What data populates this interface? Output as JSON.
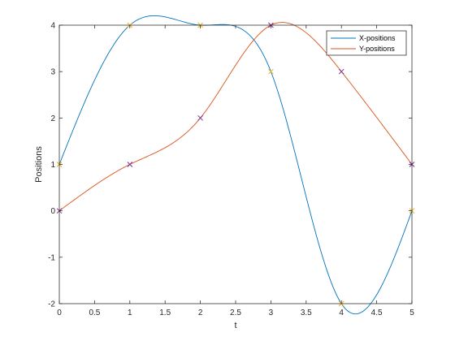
{
  "chart_data": {
    "type": "line",
    "title": "",
    "xlabel": "t",
    "ylabel": "Positions",
    "xlim": [
      0,
      5
    ],
    "ylim": [
      -2,
      4
    ],
    "xticks": [
      0,
      0.5,
      1,
      1.5,
      2,
      2.5,
      3,
      3.5,
      4,
      4.5,
      5
    ],
    "xtick_labels": [
      "0",
      "0.5",
      "1",
      "1.5",
      "2",
      "2.5",
      "3",
      "3.5",
      "4",
      "4.5",
      "5"
    ],
    "yticks": [
      -2,
      -1,
      0,
      1,
      2,
      3,
      4
    ],
    "ytick_labels": [
      "-2",
      "-1",
      "0",
      "1",
      "2",
      "3",
      "4"
    ],
    "grid": false,
    "legend_position": "top-right",
    "series": [
      {
        "name": "X-positions",
        "color": "#0072BD",
        "marker_color": "#EDB120",
        "marker": "x",
        "x": [
          0,
          1,
          2,
          3,
          4,
          5
        ],
        "values": [
          1,
          4,
          4,
          3,
          -2,
          0
        ]
      },
      {
        "name": "Y-positions",
        "color": "#D95319",
        "marker_color": "#7E2F8E",
        "marker": "x",
        "x": [
          0,
          1,
          2,
          3,
          4,
          5
        ],
        "values": [
          0,
          1,
          2,
          4,
          3,
          1
        ]
      }
    ]
  }
}
